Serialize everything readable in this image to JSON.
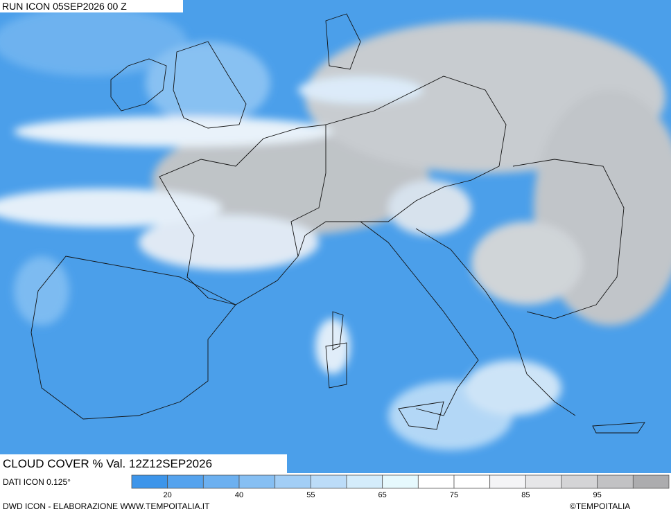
{
  "header": {
    "run": "RUN ICON 05SEP2026 00 Z",
    "title": "CLOUD COVER % Val. 12Z12SEP2026"
  },
  "colorbar": {
    "colors": [
      "#3d95ea",
      "#55a3ee",
      "#6cb0f0",
      "#86bff3",
      "#a2cef6",
      "#bcdcf8",
      "#d4ecfb",
      "#e6f9fd",
      "#ffffff",
      "#ffffff",
      "#f4f4f6",
      "#e6e6e8",
      "#d4d4d6",
      "#c2c2c4",
      "#acacae"
    ],
    "labels": [
      "20",
      "40",
      "55",
      "65",
      "75",
      "85",
      "95"
    ]
  },
  "footer": {
    "source": "DATI ICON 0.125°",
    "credits": "DWD ICON - ELABORAZIONE WWW.TEMPOITALIA.IT",
    "copyright": "©TEMPOITALIA"
  }
}
